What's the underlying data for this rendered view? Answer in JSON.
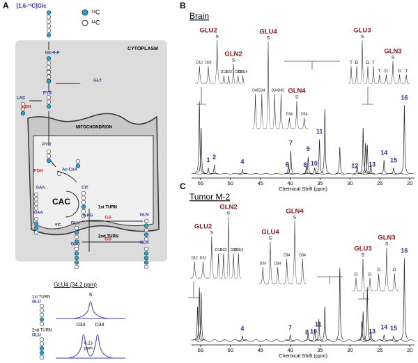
{
  "panel_a": {
    "label": "A",
    "texts": [
      "[1,6-¹³C]Glc",
      "¹³C",
      "¹²C",
      "CYTOPLASM",
      "Glc-6-P",
      "GLY",
      "PYR",
      "LAC",
      "LDH",
      "MITOCHONDRION",
      "PYR",
      "PDH",
      "Ac-CoA",
      "OAA",
      "CIT",
      "CAC",
      "OAA",
      "α-KG",
      "etc.",
      "1st TURN",
      "GLU",
      "GS",
      "GLN",
      "2nd TURN",
      "GLU",
      "GS",
      "GLN",
      "GLU4 (34.2 ppm)",
      "1st TURN",
      "GLU",
      "S",
      "2nd TURN",
      "GLU",
      "D34",
      "D34",
      "0.23",
      "ppm"
    ]
  },
  "spectra": [
    {
      "label": "B",
      "title": "Brain",
      "xlabel": "Chemical Shift (ppm)",
      "xlim": [
        56.5,
        19.2
      ],
      "xticks": [
        55,
        50,
        45,
        40,
        35,
        30,
        25,
        20
      ],
      "peaks": [
        {
          "ppm": 55.2,
          "height": 95
        },
        {
          "ppm": 54.9,
          "height": 60
        },
        {
          "ppm": 53.7,
          "height": 8
        },
        {
          "ppm": 52.7,
          "height": 12
        },
        {
          "ppm": 48.0,
          "height": 6
        },
        {
          "ppm": 40.3,
          "height": 14
        },
        {
          "ppm": 39.9,
          "height": 30
        },
        {
          "ppm": 37.3,
          "height": 10
        },
        {
          "ppm": 37.0,
          "height": 22
        },
        {
          "ppm": 35.9,
          "height": 8
        },
        {
          "ppm": 35.1,
          "height": 45
        },
        {
          "ppm": 34.2,
          "height": 85
        },
        {
          "ppm": 31.7,
          "height": 35
        },
        {
          "ppm": 28.8,
          "height": 10
        },
        {
          "ppm": 27.8,
          "height": 60
        },
        {
          "ppm": 27.4,
          "height": 40
        },
        {
          "ppm": 27.1,
          "height": 38
        },
        {
          "ppm": 26.5,
          "height": 12
        },
        {
          "ppm": 24.3,
          "height": 18
        },
        {
          "ppm": 22.7,
          "height": 8
        },
        {
          "ppm": 20.9,
          "height": 90
        }
      ],
      "peak_labels": [
        {
          "text": "1",
          "ppm": 53.7
        },
        {
          "text": "2",
          "ppm": 52.7
        },
        {
          "text": "4",
          "ppm": 48.0
        },
        {
          "text": "6",
          "ppm": 40.5
        },
        {
          "text": "7",
          "ppm": 39.9
        },
        {
          "text": "8",
          "ppm": 37.5
        },
        {
          "text": "9",
          "ppm": 37.0
        },
        {
          "text": "10",
          "ppm": 36.0
        },
        {
          "text": "11",
          "ppm": 35.1
        },
        {
          "text": "12",
          "ppm": 29.2
        },
        {
          "text": "13",
          "ppm": 26.3
        },
        {
          "text": "14",
          "ppm": 24.3
        },
        {
          "text": "15",
          "ppm": 22.7
        },
        {
          "text": "16",
          "ppm": 20.9
        }
      ],
      "insets": [
        {
          "title": "GLU2",
          "labels": [
            "D12",
            "D23",
            "S"
          ]
        },
        {
          "title": "GLN2",
          "labels": [
            "D12",
            "D23",
            "S",
            "D23",
            "CRE4"
          ]
        },
        {
          "title": "GLU4",
          "labels": [
            "D45",
            "D34",
            "S",
            "D34",
            "D45"
          ]
        },
        {
          "title": "GLN4",
          "labels": [
            "D34",
            "S",
            "D34"
          ]
        },
        {
          "title": "GLU3",
          "labels": [
            "T",
            "D",
            "S",
            "D",
            "T"
          ]
        },
        {
          "title": "GLN3",
          "labels": [
            "T",
            "D",
            "S",
            "D",
            "T"
          ]
        }
      ]
    },
    {
      "label": "C",
      "title": "Tumor M-2",
      "xlabel": "Chemical Shift (ppm)",
      "xlim": [
        56.5,
        19.2
      ],
      "xticks": [
        55,
        50,
        45,
        40,
        35,
        30,
        25,
        20
      ],
      "peaks": [
        {
          "ppm": 55.5,
          "height": 35
        },
        {
          "ppm": 55.2,
          "height": 55
        },
        {
          "ppm": 54.9,
          "height": 50
        },
        {
          "ppm": 48.0,
          "height": 5
        },
        {
          "ppm": 40.0,
          "height": 6
        },
        {
          "ppm": 37.0,
          "height": 8
        },
        {
          "ppm": 35.9,
          "height": 12
        },
        {
          "ppm": 35.2,
          "height": 22
        },
        {
          "ppm": 34.2,
          "height": 35
        },
        {
          "ppm": 31.7,
          "height": 75
        },
        {
          "ppm": 28.0,
          "height": 20
        },
        {
          "ppm": 27.8,
          "height": 30
        },
        {
          "ppm": 27.1,
          "height": 55
        },
        {
          "ppm": 26.5,
          "height": 10
        },
        {
          "ppm": 24.3,
          "height": 6
        },
        {
          "ppm": 22.7,
          "height": 5
        },
        {
          "ppm": 20.9,
          "height": 85
        }
      ],
      "peak_labels": [
        {
          "text": "4",
          "ppm": 48.0
        },
        {
          "text": "7",
          "ppm": 40.0
        },
        {
          "text": "8",
          "ppm": 37.2
        },
        {
          "text": "10",
          "ppm": 36.1
        },
        {
          "text": "11",
          "ppm": 35.3
        },
        {
          "text": "13",
          "ppm": 26.3
        },
        {
          "text": "14",
          "ppm": 24.3
        },
        {
          "text": "15",
          "ppm": 22.7
        },
        {
          "text": "16",
          "ppm": 20.9
        }
      ],
      "insets": [
        {
          "title": "GLU2",
          "labels": [
            "D12",
            "D23",
            "S"
          ]
        },
        {
          "title": "GLN2",
          "labels": [
            "D12",
            "D23",
            "S",
            "D23",
            "CRE4"
          ]
        },
        {
          "title": "GLU4",
          "labels": [
            "D34",
            "S",
            "D34"
          ]
        },
        {
          "title": "GLN4",
          "labels": [
            "D34",
            "S",
            "D34"
          ]
        },
        {
          "title": "GLU3",
          "labels": [
            "D",
            "S",
            "D"
          ]
        },
        {
          "title": "GLN3",
          "labels": [
            "D",
            "S",
            "D"
          ]
        }
      ]
    }
  ]
}
